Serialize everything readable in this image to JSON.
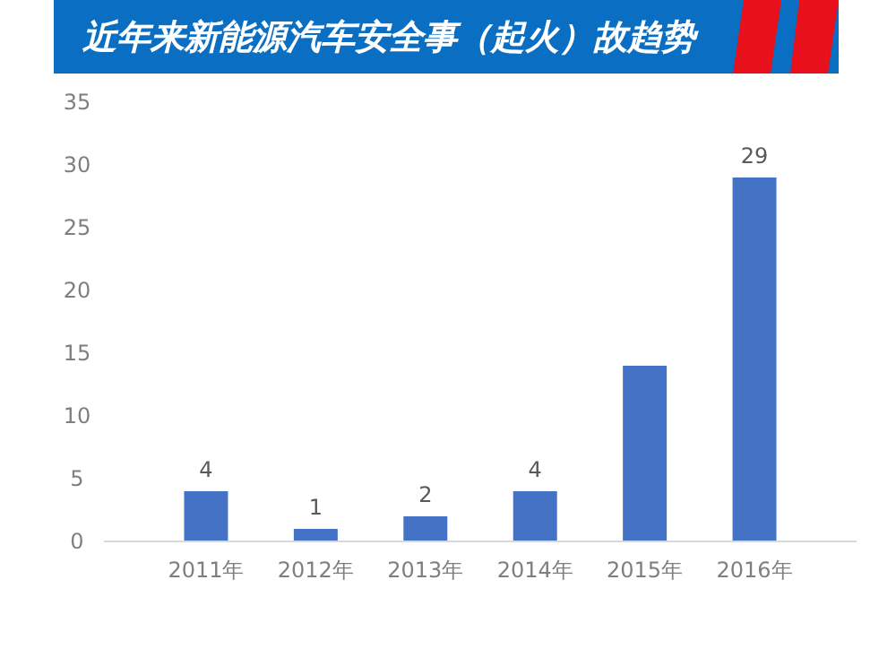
{
  "chart_data": {
    "type": "bar",
    "title": "近年来新能源汽车安全事（起火）故趋势",
    "categories": [
      "2011年",
      "2012年",
      "2013年",
      "2014年",
      "2015年",
      "2016年"
    ],
    "values": [
      4,
      1,
      2,
      4,
      14,
      29
    ],
    "color": "#4472c4",
    "value_labels": [
      "4",
      "1",
      "2",
      "4",
      null,
      "29"
    ],
    "ylim": [
      0,
      35
    ],
    "yticks": [
      0,
      5,
      10,
      15,
      20,
      25,
      30,
      35
    ],
    "grid": false
  }
}
